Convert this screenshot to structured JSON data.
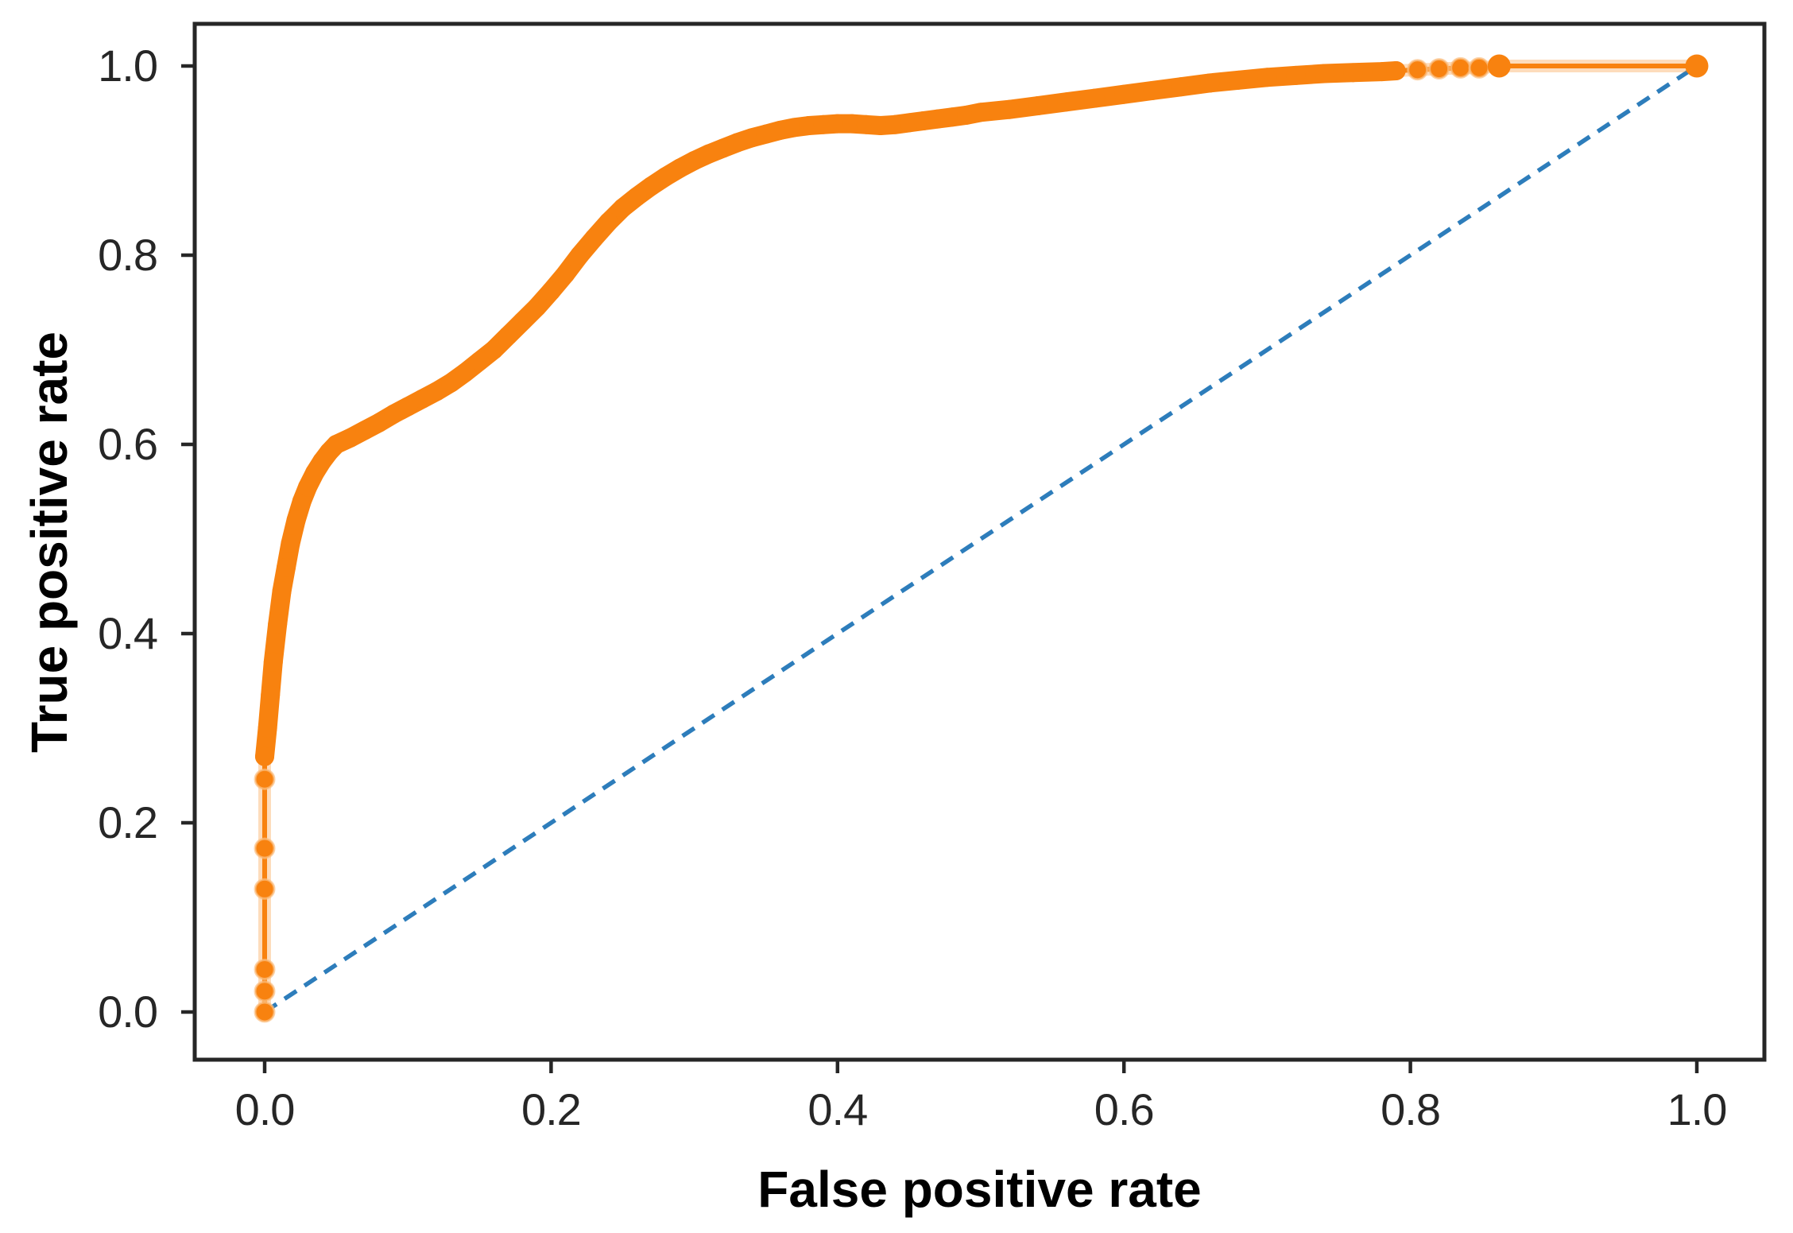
{
  "chart_data": {
    "type": "line",
    "title": "",
    "xlabel": "False positive rate",
    "ylabel": "True positive rate",
    "xlim": [
      -0.05,
      1.05
    ],
    "ylim": [
      -0.05,
      1.05
    ],
    "grid": false,
    "legend": "none",
    "x_ticks": {
      "values": [
        0.0,
        0.2,
        0.4,
        0.6,
        0.8,
        1.0
      ],
      "labels": [
        "0.0",
        "0.2",
        "0.4",
        "0.6",
        "0.8",
        "1.0"
      ]
    },
    "y_ticks": {
      "values": [
        0.0,
        0.2,
        0.4,
        0.6,
        0.8,
        1.0
      ],
      "labels": [
        "0.0",
        "0.2",
        "0.4",
        "0.6",
        "0.8",
        "1.0"
      ]
    },
    "colors": {
      "roc_curve": "#f8820f",
      "roc_halo": "#fbc084",
      "chance_line": "#2d7dbb",
      "axis": "#262626",
      "tick_text": "#262626",
      "label_text": "#000000"
    },
    "series": [
      {
        "name": "ROC curve",
        "type": "scatter+line",
        "color": "#f8820f",
        "isolated_points_left": [
          [
            0.0,
            0.0
          ],
          [
            0.0,
            0.022
          ],
          [
            0.0,
            0.045
          ],
          [
            0.0,
            0.13
          ],
          [
            0.0,
            0.173
          ],
          [
            0.0,
            0.246
          ]
        ],
        "dense_points": [
          [
            0.0,
            0.27
          ],
          [
            0.002,
            0.3
          ],
          [
            0.004,
            0.335
          ],
          [
            0.006,
            0.37
          ],
          [
            0.009,
            0.41
          ],
          [
            0.012,
            0.445
          ],
          [
            0.015,
            0.47
          ],
          [
            0.018,
            0.495
          ],
          [
            0.022,
            0.52
          ],
          [
            0.026,
            0.54
          ],
          [
            0.03,
            0.555
          ],
          [
            0.035,
            0.57
          ],
          [
            0.04,
            0.582
          ],
          [
            0.045,
            0.592
          ],
          [
            0.05,
            0.6
          ],
          [
            0.06,
            0.607
          ],
          [
            0.07,
            0.615
          ],
          [
            0.08,
            0.623
          ],
          [
            0.09,
            0.632
          ],
          [
            0.1,
            0.64
          ],
          [
            0.11,
            0.648
          ],
          [
            0.12,
            0.656
          ],
          [
            0.13,
            0.665
          ],
          [
            0.14,
            0.676
          ],
          [
            0.15,
            0.688
          ],
          [
            0.16,
            0.7
          ],
          [
            0.17,
            0.715
          ],
          [
            0.18,
            0.73
          ],
          [
            0.19,
            0.745
          ],
          [
            0.2,
            0.762
          ],
          [
            0.21,
            0.78
          ],
          [
            0.22,
            0.8
          ],
          [
            0.23,
            0.818
          ],
          [
            0.24,
            0.835
          ],
          [
            0.25,
            0.85
          ],
          [
            0.26,
            0.862
          ],
          [
            0.27,
            0.873
          ],
          [
            0.28,
            0.883
          ],
          [
            0.29,
            0.892
          ],
          [
            0.3,
            0.9
          ],
          [
            0.31,
            0.907
          ],
          [
            0.32,
            0.913
          ],
          [
            0.33,
            0.919
          ],
          [
            0.34,
            0.924
          ],
          [
            0.35,
            0.928
          ],
          [
            0.36,
            0.932
          ],
          [
            0.37,
            0.935
          ],
          [
            0.38,
            0.937
          ],
          [
            0.39,
            0.938
          ],
          [
            0.4,
            0.939
          ],
          [
            0.41,
            0.939
          ],
          [
            0.42,
            0.938
          ],
          [
            0.43,
            0.937
          ],
          [
            0.44,
            0.938
          ],
          [
            0.45,
            0.94
          ],
          [
            0.46,
            0.942
          ],
          [
            0.47,
            0.944
          ],
          [
            0.48,
            0.946
          ],
          [
            0.49,
            0.948
          ],
          [
            0.5,
            0.951
          ],
          [
            0.52,
            0.954
          ],
          [
            0.54,
            0.958
          ],
          [
            0.56,
            0.962
          ],
          [
            0.58,
            0.966
          ],
          [
            0.6,
            0.97
          ],
          [
            0.62,
            0.974
          ],
          [
            0.64,
            0.978
          ],
          [
            0.66,
            0.982
          ],
          [
            0.68,
            0.985
          ],
          [
            0.7,
            0.988
          ],
          [
            0.72,
            0.99
          ],
          [
            0.74,
            0.992
          ],
          [
            0.76,
            0.993
          ],
          [
            0.78,
            0.994
          ],
          [
            0.79,
            0.995
          ]
        ],
        "isolated_points_right": [
          [
            0.805,
            0.996
          ],
          [
            0.82,
            0.997
          ],
          [
            0.835,
            0.998
          ],
          [
            0.848,
            0.998
          ],
          [
            0.862,
            1.0
          ]
        ],
        "end_markers": [
          [
            0.862,
            1.0
          ],
          [
            1.0,
            1.0
          ]
        ],
        "end_point": [
          1.0,
          1.0
        ]
      },
      {
        "name": "Chance diagonal",
        "type": "dashed-line",
        "color": "#2d7dbb",
        "points": [
          [
            0.0,
            0.0
          ],
          [
            1.0,
            1.0
          ]
        ]
      }
    ]
  }
}
